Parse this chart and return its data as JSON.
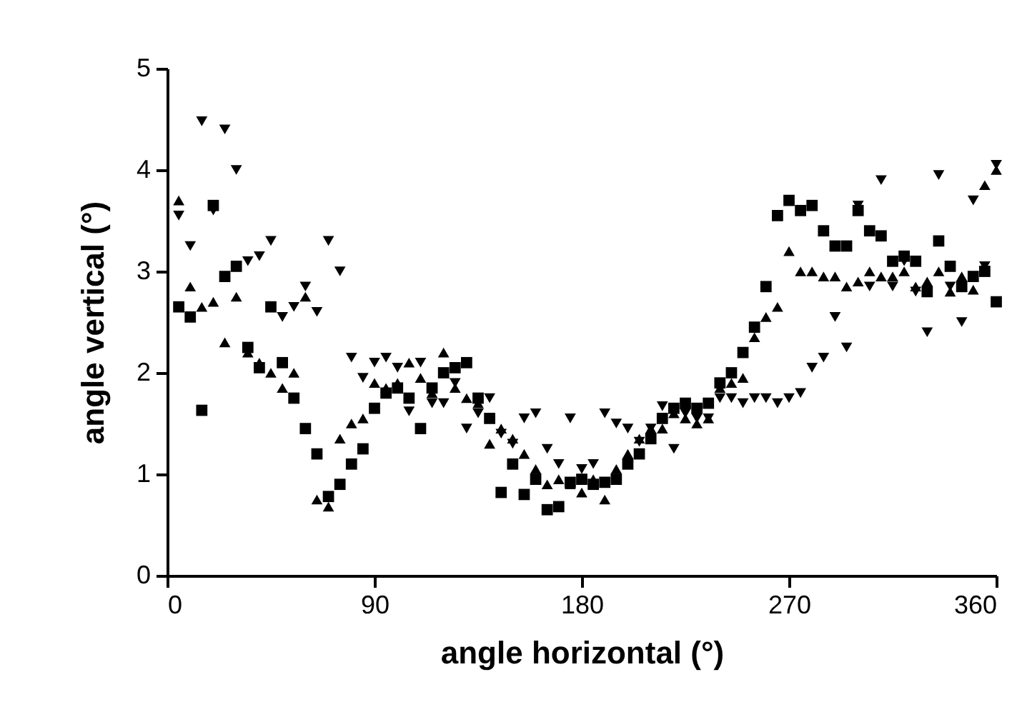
{
  "chart_data": {
    "type": "scatter",
    "xlabel": "angle horizontal (°)",
    "ylabel": "angle vertical (°)",
    "x": [
      5,
      10,
      15,
      20,
      25,
      30,
      35,
      40,
      45,
      50,
      55,
      60,
      65,
      70,
      75,
      80,
      85,
      90,
      95,
      100,
      105,
      110,
      115,
      120,
      125,
      130,
      135,
      140,
      145,
      150,
      155,
      160,
      165,
      170,
      175,
      180,
      185,
      190,
      195,
      200,
      205,
      210,
      215,
      220,
      225,
      230,
      235,
      240,
      245,
      250,
      255,
      260,
      265,
      270,
      275,
      280,
      285,
      290,
      295,
      300,
      305,
      310,
      315,
      320,
      325,
      330,
      335,
      340,
      345,
      350,
      355,
      360
    ],
    "series": [
      {
        "color": "#000000",
        "marker": "square",
        "values": [
          2.65,
          2.55,
          1.63,
          3.65,
          2.95,
          3.05,
          2.25,
          2.05,
          2.65,
          2.1,
          1.75,
          1.45,
          1.2,
          0.78,
          0.9,
          1.1,
          1.25,
          1.65,
          1.8,
          1.85,
          1.75,
          1.45,
          1.85,
          2.0,
          2.05,
          2.1,
          1.75,
          1.55,
          0.82,
          1.1,
          0.8,
          0.95,
          0.65,
          0.68,
          0.92,
          0.95,
          0.9,
          0.92,
          0.95,
          1.1,
          1.2,
          1.35,
          1.55,
          1.65,
          1.7,
          1.65,
          1.7,
          1.9,
          2.0,
          2.2,
          2.45,
          2.85,
          3.55,
          3.7,
          3.6,
          3.65,
          3.4,
          3.25,
          3.25,
          3.6,
          3.4,
          3.35,
          3.1,
          3.15,
          3.1,
          2.8,
          3.3,
          3.05,
          2.85,
          2.95,
          3.0,
          2.7
        ]
      },
      {
        "color": "#000000",
        "marker": "triangle",
        "values": [
          3.7,
          2.85,
          2.65,
          2.7,
          2.3,
          2.75,
          2.2,
          2.1,
          2.0,
          1.85,
          2.0,
          2.75,
          0.75,
          0.68,
          1.35,
          1.5,
          1.55,
          1.9,
          1.85,
          1.9,
          2.1,
          1.95,
          1.8,
          2.2,
          1.85,
          1.75,
          1.7,
          1.3,
          1.45,
          1.35,
          1.2,
          1.05,
          0.9,
          0.95,
          0.9,
          0.82,
          0.95,
          0.75,
          1.05,
          1.2,
          1.35,
          1.45,
          1.45,
          1.6,
          1.55,
          1.5,
          1.55,
          1.85,
          1.9,
          1.95,
          2.35,
          2.55,
          2.65,
          3.2,
          3.0,
          3.0,
          2.95,
          2.95,
          2.85,
          2.9,
          3.0,
          2.95,
          2.95,
          3.0,
          2.85,
          2.9,
          3.0,
          2.8,
          2.95,
          2.82,
          3.85,
          4.0
        ]
      },
      {
        "color": "#000000",
        "marker": "triangle-down",
        "values": [
          3.55,
          3.25,
          4.48,
          3.6,
          4.4,
          4.0,
          3.1,
          3.15,
          3.3,
          2.55,
          2.65,
          2.85,
          2.6,
          3.3,
          3.0,
          2.15,
          1.95,
          2.1,
          2.15,
          2.05,
          1.62,
          2.1,
          1.7,
          1.7,
          1.9,
          1.45,
          1.6,
          1.75,
          1.4,
          1.3,
          1.55,
          1.6,
          1.25,
          1.1,
          1.55,
          1.05,
          1.1,
          1.6,
          1.5,
          1.45,
          1.32,
          1.45,
          1.67,
          1.25,
          1.6,
          1.55,
          1.55,
          1.75,
          1.75,
          1.7,
          1.75,
          1.75,
          1.7,
          1.75,
          1.8,
          2.05,
          2.15,
          2.55,
          2.25,
          3.65,
          2.85,
          3.9,
          2.85,
          3.1,
          2.8,
          2.4,
          3.95,
          2.85,
          2.5,
          3.7,
          3.05,
          4.05
        ]
      }
    ],
    "xlim": [
      0,
      360
    ],
    "xticks": [
      0,
      90,
      180,
      270,
      360
    ],
    "ylim": [
      0,
      5
    ],
    "yticks": [
      0,
      1,
      2,
      3,
      4,
      5
    ],
    "grid": false
  }
}
